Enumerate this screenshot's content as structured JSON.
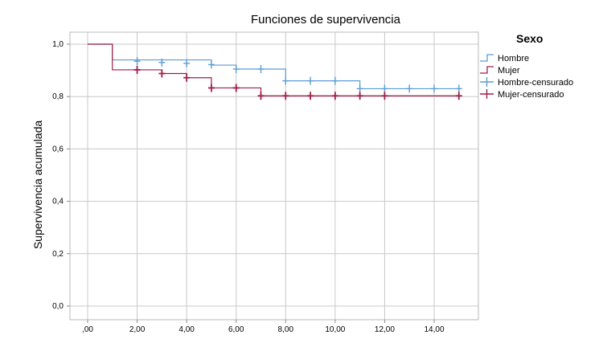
{
  "chart_data": {
    "type": "line",
    "step": true,
    "title": "Funciones de supervivencia",
    "ylabel": "Supervivencia acumulada",
    "xlabel": "",
    "xlim": [
      0,
      15.7
    ],
    "ylim": [
      0,
      1.05
    ],
    "grid": true,
    "x_ticks": [
      {
        "value": 0,
        "label": ",00"
      },
      {
        "value": 2,
        "label": "2,00"
      },
      {
        "value": 4,
        "label": "4,00"
      },
      {
        "value": 6,
        "label": "6,00"
      },
      {
        "value": 8,
        "label": "8,00"
      },
      {
        "value": 10,
        "label": "10,00"
      },
      {
        "value": 12,
        "label": "12,00"
      },
      {
        "value": 14,
        "label": "14,00"
      }
    ],
    "y_ticks": [
      {
        "value": 0,
        "label": "0,0"
      },
      {
        "value": 0.2,
        "label": "0,2"
      },
      {
        "value": 0.4,
        "label": "0,4"
      },
      {
        "value": 0.6,
        "label": "0,6"
      },
      {
        "value": 0.8,
        "label": "0,8"
      },
      {
        "value": 1.0,
        "label": "1,0"
      }
    ],
    "legend": {
      "title": "Sexo",
      "position": "right",
      "entries": [
        "Hombre",
        "Mujer",
        "Hombre-censurado",
        "Mujer-censurado"
      ]
    },
    "series": [
      {
        "name": "Hombre",
        "color": "#5b9bd5",
        "x": [
          0,
          1,
          5,
          6,
          8,
          11,
          15
        ],
        "y": [
          1.0,
          0.94,
          0.92,
          0.905,
          0.86,
          0.83,
          0.83
        ],
        "censored": [
          {
            "x": 2,
            "y": 0.935
          },
          {
            "x": 3,
            "y": 0.93
          },
          {
            "x": 4,
            "y": 0.927
          },
          {
            "x": 5,
            "y": 0.922
          },
          {
            "x": 6,
            "y": 0.905
          },
          {
            "x": 7,
            "y": 0.905
          },
          {
            "x": 8,
            "y": 0.86
          },
          {
            "x": 9,
            "y": 0.86
          },
          {
            "x": 10,
            "y": 0.86
          },
          {
            "x": 11,
            "y": 0.83
          },
          {
            "x": 12,
            "y": 0.83
          },
          {
            "x": 13,
            "y": 0.83
          },
          {
            "x": 14,
            "y": 0.83
          },
          {
            "x": 15,
            "y": 0.83
          }
        ]
      },
      {
        "name": "Mujer",
        "color": "#a11d4a",
        "x": [
          0,
          1,
          3,
          4,
          5,
          7,
          15
        ],
        "y": [
          1.0,
          0.902,
          0.888,
          0.872,
          0.833,
          0.803,
          0.803
        ],
        "censored": [
          {
            "x": 2,
            "y": 0.902
          },
          {
            "x": 3,
            "y": 0.888
          },
          {
            "x": 4,
            "y": 0.872
          },
          {
            "x": 5,
            "y": 0.833
          },
          {
            "x": 6,
            "y": 0.833
          },
          {
            "x": 7,
            "y": 0.803
          },
          {
            "x": 8,
            "y": 0.803
          },
          {
            "x": 9,
            "y": 0.803
          },
          {
            "x": 10,
            "y": 0.803
          },
          {
            "x": 11,
            "y": 0.803
          },
          {
            "x": 12,
            "y": 0.803
          },
          {
            "x": 15,
            "y": 0.803
          }
        ]
      }
    ]
  }
}
